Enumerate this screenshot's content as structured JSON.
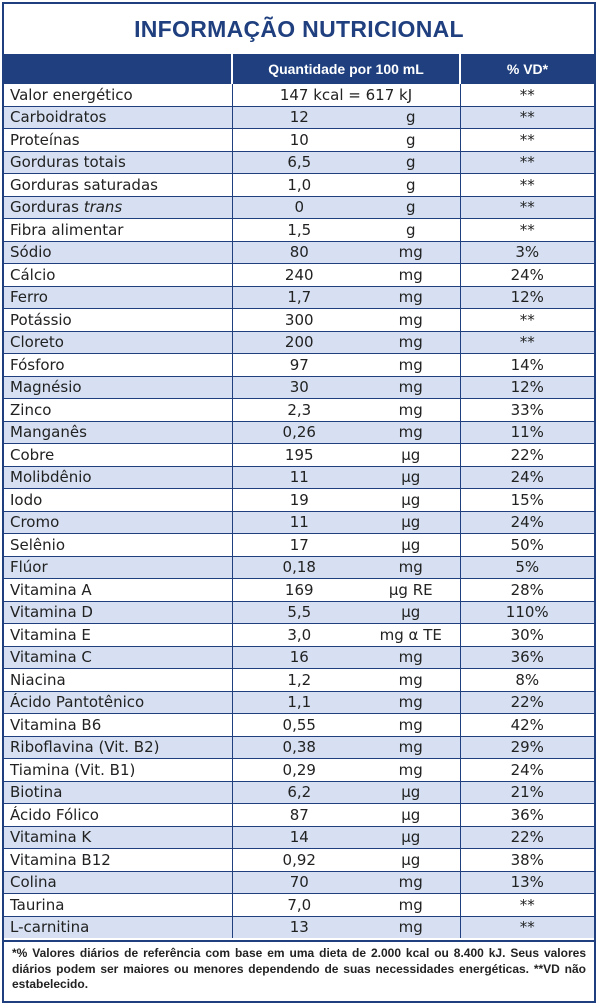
{
  "title": "INFORMAÇÃO NUTRICIONAL",
  "header": {
    "quantity": "Quantidade por 100 mL",
    "vd": "% VD*"
  },
  "energy": {
    "name": "Valor energético",
    "amount": "147 kcal = 617 kJ",
    "vd": "**"
  },
  "rows": [
    {
      "name": "Carboidratos",
      "amount": "12",
      "unit": "g",
      "vd": "**"
    },
    {
      "name": "Proteínas",
      "amount": "10",
      "unit": "g",
      "vd": "**"
    },
    {
      "name": "Gorduras totais",
      "amount": "6,5",
      "unit": "g",
      "vd": "**"
    },
    {
      "name": "Gorduras saturadas",
      "amount": "1,0",
      "unit": "g",
      "vd": "**"
    },
    {
      "name": "Gorduras ",
      "name_italic": "trans",
      "amount": "0",
      "unit": "g",
      "vd": "**"
    },
    {
      "name": "Fibra alimentar",
      "amount": "1,5",
      "unit": "g",
      "vd": "**"
    },
    {
      "name": "Sódio",
      "amount": "80",
      "unit": "mg",
      "vd": "3%"
    },
    {
      "name": "Cálcio",
      "amount": "240",
      "unit": "mg",
      "vd": "24%"
    },
    {
      "name": "Ferro",
      "amount": "1,7",
      "unit": "mg",
      "vd": "12%"
    },
    {
      "name": "Potássio",
      "amount": "300",
      "unit": "mg",
      "vd": "**"
    },
    {
      "name": "Cloreto",
      "amount": "200",
      "unit": "mg",
      "vd": "**"
    },
    {
      "name": "Fósforo",
      "amount": "97",
      "unit": "mg",
      "vd": "14%"
    },
    {
      "name": "Magnésio",
      "amount": "30",
      "unit": "mg",
      "vd": "12%"
    },
    {
      "name": "Zinco",
      "amount": "2,3",
      "unit": "mg",
      "vd": "33%"
    },
    {
      "name": "Manganês",
      "amount": "0,26",
      "unit": "mg",
      "vd": "11%"
    },
    {
      "name": "Cobre",
      "amount": "195",
      "unit": "µg",
      "vd": "22%"
    },
    {
      "name": "Molibdênio",
      "amount": "11",
      "unit": "µg",
      "vd": "24%"
    },
    {
      "name": "Iodo",
      "amount": "19",
      "unit": "µg",
      "vd": "15%"
    },
    {
      "name": "Cromo",
      "amount": "11",
      "unit": "µg",
      "vd": "24%"
    },
    {
      "name": "Selênio",
      "amount": "17",
      "unit": "µg",
      "vd": "50%"
    },
    {
      "name": "Flúor",
      "amount": "0,18",
      "unit": "mg",
      "vd": "5%"
    },
    {
      "name": "Vitamina A",
      "amount": "169",
      "unit": "µg RE",
      "vd": "28%"
    },
    {
      "name": "Vitamina D",
      "amount": "5,5",
      "unit": "µg",
      "vd": "110%"
    },
    {
      "name": "Vitamina E",
      "amount": "3,0",
      "unit": "mg α TE",
      "vd": "30%"
    },
    {
      "name": "Vitamina C",
      "amount": "16",
      "unit": "mg",
      "vd": "36%"
    },
    {
      "name": "Niacina",
      "amount": "1,2",
      "unit": "mg",
      "vd": "8%"
    },
    {
      "name": "Ácido Pantotênico",
      "amount": "1,1",
      "unit": "mg",
      "vd": "22%"
    },
    {
      "name": "Vitamina B6",
      "amount": "0,55",
      "unit": "mg",
      "vd": "42%"
    },
    {
      "name": "Riboflavina (Vit. B2)",
      "amount": "0,38",
      "unit": "mg",
      "vd": "29%"
    },
    {
      "name": "Tiamina (Vit. B1)",
      "amount": "0,29",
      "unit": "mg",
      "vd": "24%"
    },
    {
      "name": "Biotina",
      "amount": "6,2",
      "unit": "µg",
      "vd": "21%"
    },
    {
      "name": "Ácido Fólico",
      "amount": "87",
      "unit": "µg",
      "vd": "36%"
    },
    {
      "name": "Vitamina K",
      "amount": "14",
      "unit": "µg",
      "vd": "22%"
    },
    {
      "name": "Vitamina B12",
      "amount": "0,92",
      "unit": "µg",
      "vd": "38%"
    },
    {
      "name": "Colina",
      "amount": "70",
      "unit": "mg",
      "vd": "13%"
    },
    {
      "name": "Taurina",
      "amount": "7,0",
      "unit": "mg",
      "vd": "**"
    },
    {
      "name": "L-carnitina",
      "amount": "13",
      "unit": "mg",
      "vd": "**"
    }
  ],
  "footer": "*% Valores diários de referência com base em uma dieta de 2.000 kcal ou 8.400 kJ. Seus valores diários podem ser maiores ou menores dependendo de suas necessidades energéticas. **VD não estabelecido.",
  "colors": {
    "brand": "#1f3f7f",
    "stripe": "#d6e0f2"
  }
}
